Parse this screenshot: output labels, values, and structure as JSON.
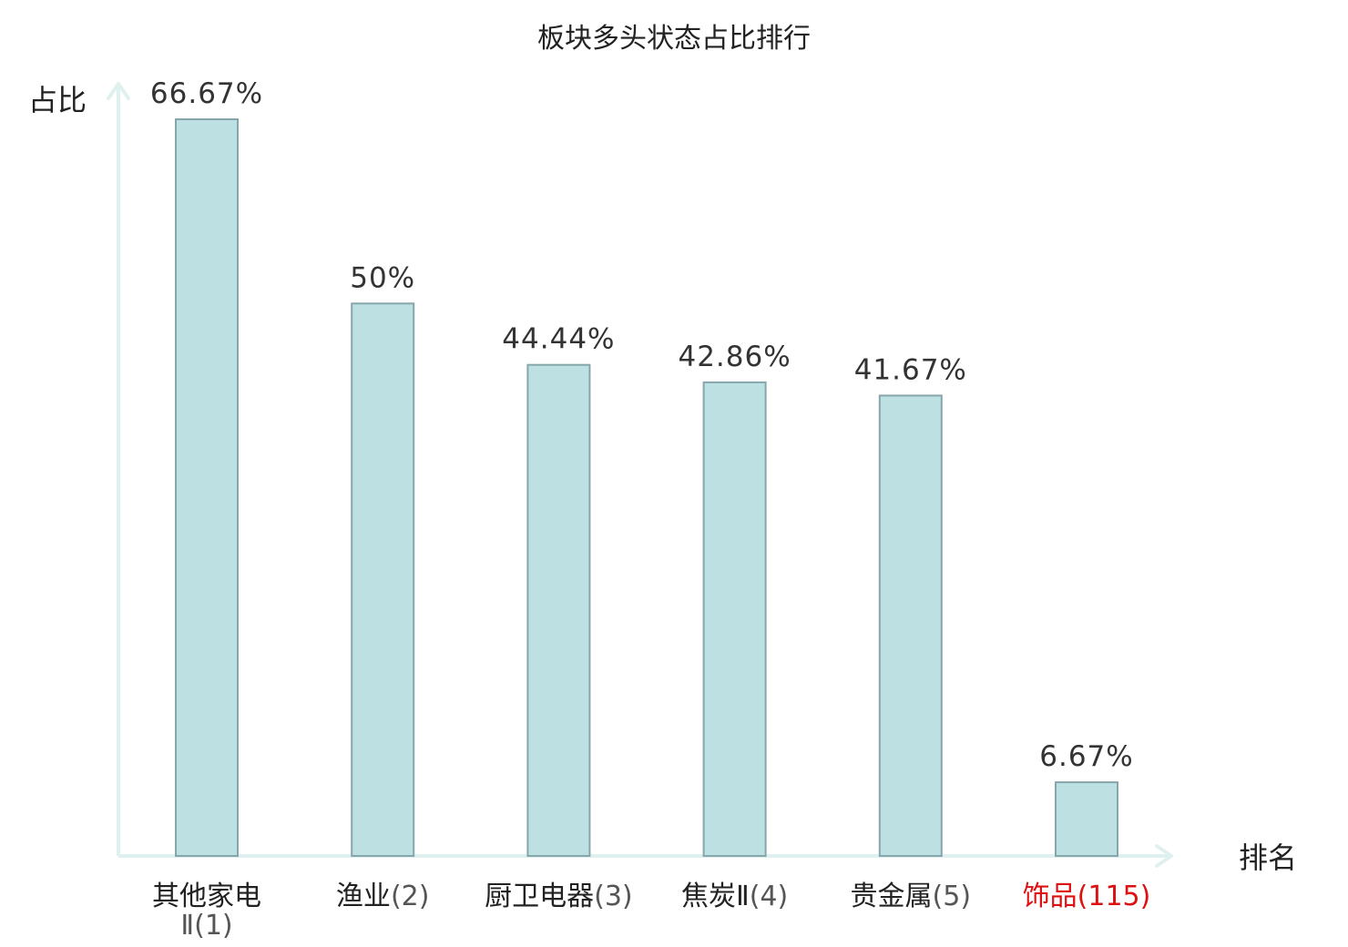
{
  "chart_data": {
    "type": "bar",
    "title": "板块多头状态占比排行",
    "ylabel": "占比",
    "xlabel": "排名",
    "categories": [
      {
        "name": "其他家电Ⅱ",
        "rank": "(1)",
        "value_label": "66.67%",
        "highlight": false
      },
      {
        "name": "渔业",
        "rank": "(2)",
        "value_label": "50%",
        "highlight": false
      },
      {
        "name": "厨卫电器",
        "rank": "(3)",
        "value_label": "44.44%",
        "highlight": false
      },
      {
        "name": "焦炭Ⅱ",
        "rank": "(4)",
        "value_label": "42.86%",
        "highlight": false
      },
      {
        "name": "贵金属",
        "rank": "(5)",
        "value_label": "41.67%",
        "highlight": false
      },
      {
        "name": "饰品",
        "rank": "(115)",
        "value_label": "6.67%",
        "highlight": true
      }
    ],
    "values": [
      66.67,
      50,
      44.44,
      42.86,
      41.67,
      6.67
    ],
    "ylim": [
      0,
      66.67
    ],
    "grid": false,
    "legend": "none"
  },
  "colors": {
    "bar_fill": "#bde0e3",
    "bar_stroke": "#86a6ab",
    "axis": "#dff1ef",
    "label_text": "#222222",
    "highlight_text": "#dd1111"
  }
}
